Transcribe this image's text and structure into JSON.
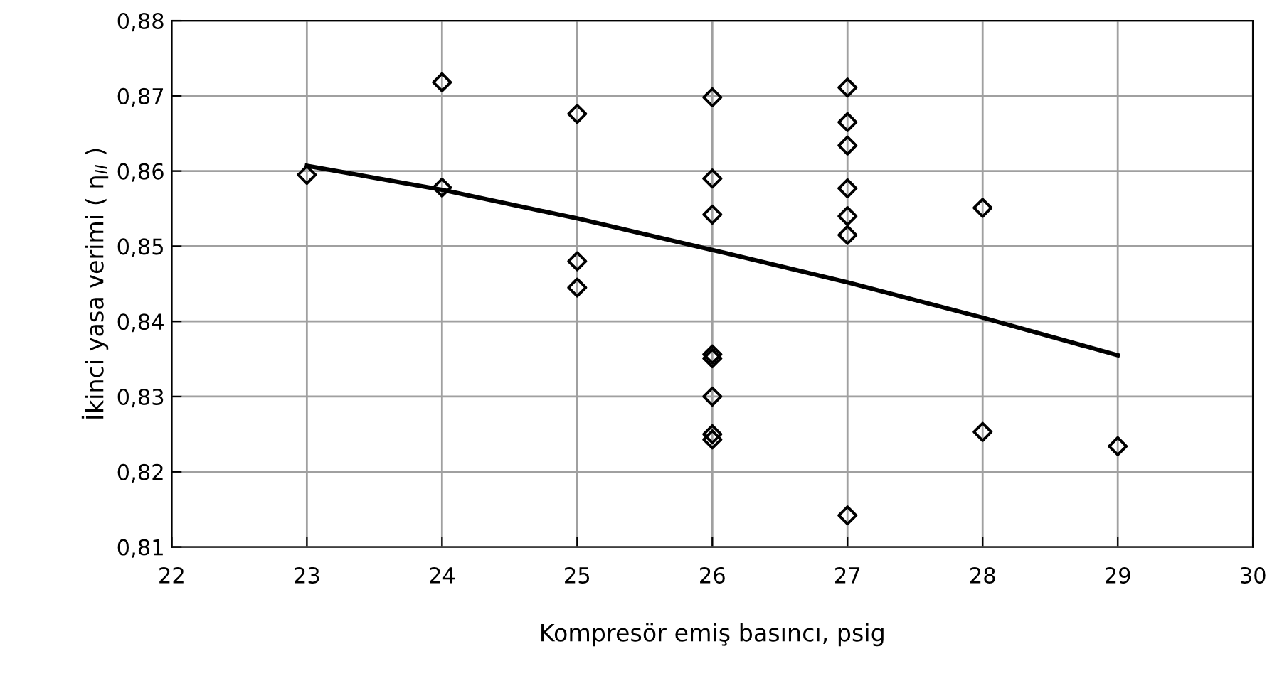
{
  "chart_data": {
    "type": "scatter",
    "xlabel": "Kompresör emiş basıncı, psig",
    "ylabel": "İkinci yasa verimi ( η$_{II}$ )",
    "xlim": [
      22,
      30
    ],
    "xticks": [
      22,
      23,
      24,
      25,
      26,
      27,
      28,
      29,
      30
    ],
    "ylim": [
      0.81,
      0.88
    ],
    "yticks": [
      {
        "value": 0.81,
        "label": "0,81"
      },
      {
        "value": 0.82,
        "label": "0,82"
      },
      {
        "value": 0.83,
        "label": "0,83"
      },
      {
        "value": 0.84,
        "label": "0,84"
      },
      {
        "value": 0.85,
        "label": "0,85"
      },
      {
        "value": 0.86,
        "label": "0,86"
      },
      {
        "value": 0.87,
        "label": "0,87"
      },
      {
        "value": 0.88,
        "label": "0,88"
      }
    ],
    "grid": true,
    "legend": false,
    "series": [
      {
        "marker": "diamond",
        "color": "#000000",
        "x": [
          23,
          24,
          24,
          25,
          25,
          25,
          26,
          26,
          26,
          26,
          26,
          26,
          26,
          26,
          27,
          27,
          27,
          27,
          27,
          27,
          27,
          28,
          28,
          29
        ],
        "values": [
          0.8595,
          0.8718,
          0.8578,
          0.8676,
          0.848,
          0.8445,
          0.8698,
          0.859,
          0.8542,
          0.8356,
          0.8351,
          0.83,
          0.825,
          0.8243,
          0.8711,
          0.8665,
          0.8634,
          0.8577,
          0.854,
          0.8515,
          0.8142,
          0.8551,
          0.8253,
          0.8234
        ]
      },
      {
        "type": "line",
        "marker": "none",
        "line_style": "solid",
        "color": "#000000",
        "x": [
          23,
          24,
          25,
          26,
          27,
          28,
          29
        ],
        "values": [
          0.8607,
          0.8575,
          0.8537,
          0.8495,
          0.8452,
          0.8405,
          0.8355
        ]
      }
    ]
  }
}
